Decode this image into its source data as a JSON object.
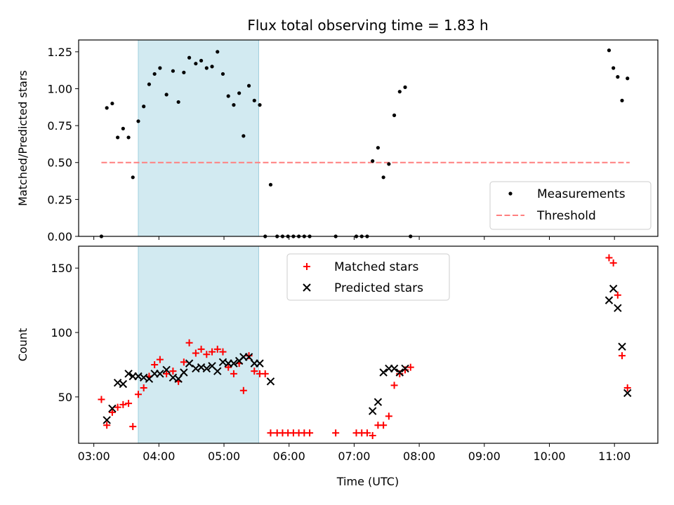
{
  "figure": {
    "title": "Flux total observing time = 1.83 h",
    "xlabel": "Time (UTC)"
  },
  "colors": {
    "measurement": "#000000",
    "threshold": "#ff7f7f",
    "matched": "#ff0000",
    "predicted": "#000000",
    "span_fill": "#add8e6"
  },
  "chart_data": [
    {
      "type": "scatter",
      "ylabel": "Matched/Predicted stars",
      "ylim": [
        0,
        1.33
      ],
      "yticks": [
        "0.00",
        "0.25",
        "0.50",
        "0.75",
        "1.00",
        "1.25"
      ],
      "xlim": [
        "02:46",
        "11:40"
      ],
      "xticks": [
        "03:00",
        "04:00",
        "05:00",
        "06:00",
        "07:00",
        "08:00",
        "09:00",
        "10:00",
        "11:00"
      ],
      "highlight_span": [
        "03:41",
        "05:32"
      ],
      "legend": {
        "position": "lower right",
        "entries": [
          "Measurements",
          "Threshold"
        ]
      },
      "threshold": {
        "name": "Threshold",
        "y": 0.5,
        "x": [
          "03:07",
          "11:14"
        ]
      },
      "series": [
        {
          "name": "Measurements",
          "marker": "dot",
          "points": [
            [
              "03:07",
              0.0
            ],
            [
              "03:12",
              0.87
            ],
            [
              "03:17",
              0.9
            ],
            [
              "03:22",
              0.67
            ],
            [
              "03:27",
              0.73
            ],
            [
              "03:32",
              0.67
            ],
            [
              "03:36",
              0.4
            ],
            [
              "03:41",
              0.78
            ],
            [
              "03:46",
              0.88
            ],
            [
              "03:51",
              1.03
            ],
            [
              "03:56",
              1.1
            ],
            [
              "04:01",
              1.14
            ],
            [
              "04:07",
              0.96
            ],
            [
              "04:13",
              1.12
            ],
            [
              "04:18",
              0.91
            ],
            [
              "04:23",
              1.11
            ],
            [
              "04:28",
              1.21
            ],
            [
              "04:34",
              1.17
            ],
            [
              "04:39",
              1.19
            ],
            [
              "04:44",
              1.14
            ],
            [
              "04:49",
              1.15
            ],
            [
              "04:54",
              1.25
            ],
            [
              "04:59",
              1.1
            ],
            [
              "05:04",
              0.95
            ],
            [
              "05:09",
              0.89
            ],
            [
              "05:14",
              0.97
            ],
            [
              "05:18",
              0.68
            ],
            [
              "05:23",
              1.02
            ],
            [
              "05:28",
              0.92
            ],
            [
              "05:33",
              0.89
            ],
            [
              "05:38",
              0.0
            ],
            [
              "05:43",
              0.35
            ],
            [
              "05:49",
              0.0
            ],
            [
              "05:54",
              0.0
            ],
            [
              "05:59",
              0.0
            ],
            [
              "06:04",
              0.0
            ],
            [
              "06:09",
              0.0
            ],
            [
              "06:14",
              0.0
            ],
            [
              "06:19",
              0.0
            ],
            [
              "06:43",
              0.0
            ],
            [
              "07:02",
              0.0
            ],
            [
              "07:07",
              0.0
            ],
            [
              "07:12",
              0.0
            ],
            [
              "07:17",
              0.51
            ],
            [
              "07:22",
              0.6
            ],
            [
              "07:27",
              0.4
            ],
            [
              "07:32",
              0.49
            ],
            [
              "07:37",
              0.82
            ],
            [
              "07:42",
              0.98
            ],
            [
              "07:47",
              1.01
            ],
            [
              "07:52",
              0.0
            ],
            [
              "10:55",
              1.26
            ],
            [
              "10:59",
              1.14
            ],
            [
              "11:03",
              1.08
            ],
            [
              "11:07",
              0.92
            ],
            [
              "11:12",
              1.07
            ]
          ]
        }
      ]
    },
    {
      "type": "scatter",
      "ylabel": "Count",
      "ylim": [
        14,
        167
      ],
      "yticks": [
        "50",
        "100",
        "150"
      ],
      "xlim": [
        "02:46",
        "11:40"
      ],
      "xticks": [
        "03:00",
        "04:00",
        "05:00",
        "06:00",
        "07:00",
        "08:00",
        "09:00",
        "10:00",
        "11:00"
      ],
      "highlight_span": [
        "03:41",
        "05:32"
      ],
      "legend": {
        "position": "upper center",
        "entries": [
          "Matched stars",
          "Predicted stars"
        ]
      },
      "series": [
        {
          "name": "Matched stars",
          "marker": "plus",
          "points": [
            [
              "03:07",
              48
            ],
            [
              "03:12",
              28
            ],
            [
              "03:17",
              38
            ],
            [
              "03:22",
              42
            ],
            [
              "03:27",
              44
            ],
            [
              "03:32",
              45
            ],
            [
              "03:36",
              27
            ],
            [
              "03:41",
              52
            ],
            [
              "03:46",
              57
            ],
            [
              "03:51",
              66
            ],
            [
              "03:56",
              75
            ],
            [
              "04:01",
              79
            ],
            [
              "04:07",
              68
            ],
            [
              "04:13",
              70
            ],
            [
              "04:18",
              62
            ],
            [
              "04:23",
              77
            ],
            [
              "04:28",
              92
            ],
            [
              "04:34",
              84
            ],
            [
              "04:39",
              87
            ],
            [
              "04:44",
              83
            ],
            [
              "04:49",
              85
            ],
            [
              "04:54",
              87
            ],
            [
              "04:59",
              85
            ],
            [
              "05:04",
              73
            ],
            [
              "05:09",
              68
            ],
            [
              "05:14",
              76
            ],
            [
              "05:18",
              55
            ],
            [
              "05:23",
              82
            ],
            [
              "05:28",
              70
            ],
            [
              "05:33",
              68
            ],
            [
              "05:38",
              68
            ],
            [
              "05:43",
              22
            ],
            [
              "05:49",
              22
            ],
            [
              "05:54",
              22
            ],
            [
              "05:59",
              22
            ],
            [
              "06:04",
              22
            ],
            [
              "06:09",
              22
            ],
            [
              "06:14",
              22
            ],
            [
              "06:19",
              22
            ],
            [
              "06:43",
              22
            ],
            [
              "07:02",
              22
            ],
            [
              "07:07",
              22
            ],
            [
              "07:12",
              22
            ],
            [
              "07:17",
              20
            ],
            [
              "07:22",
              28
            ],
            [
              "07:27",
              28
            ],
            [
              "07:32",
              35
            ],
            [
              "07:37",
              59
            ],
            [
              "07:42",
              68
            ],
            [
              "07:47",
              71
            ],
            [
              "07:52",
              73
            ],
            [
              "10:55",
              158
            ],
            [
              "10:59",
              154
            ],
            [
              "11:03",
              129
            ],
            [
              "11:07",
              82
            ],
            [
              "11:12",
              57
            ]
          ]
        },
        {
          "name": "Predicted stars",
          "marker": "x",
          "points": [
            [
              "03:12",
              32
            ],
            [
              "03:17",
              41
            ],
            [
              "03:22",
              61
            ],
            [
              "03:27",
              60
            ],
            [
              "03:32",
              68
            ],
            [
              "03:36",
              66
            ],
            [
              "03:41",
              66
            ],
            [
              "03:46",
              65
            ],
            [
              "03:51",
              64
            ],
            [
              "03:56",
              68
            ],
            [
              "04:01",
              68
            ],
            [
              "04:07",
              71
            ],
            [
              "04:13",
              65
            ],
            [
              "04:18",
              64
            ],
            [
              "04:23",
              69
            ],
            [
              "04:28",
              76
            ],
            [
              "04:34",
              72
            ],
            [
              "04:39",
              73
            ],
            [
              "04:44",
              72
            ],
            [
              "04:49",
              74
            ],
            [
              "04:54",
              70
            ],
            [
              "04:59",
              77
            ],
            [
              "05:04",
              76
            ],
            [
              "05:09",
              76
            ],
            [
              "05:14",
              78
            ],
            [
              "05:18",
              81
            ],
            [
              "05:23",
              81
            ],
            [
              "05:28",
              76
            ],
            [
              "05:33",
              76
            ],
            [
              "05:43",
              62
            ],
            [
              "07:17",
              39
            ],
            [
              "07:22",
              46
            ],
            [
              "07:27",
              69
            ],
            [
              "07:32",
              72
            ],
            [
              "07:37",
              72
            ],
            [
              "07:42",
              69
            ],
            [
              "07:47",
              72
            ],
            [
              "10:55",
              125
            ],
            [
              "10:59",
              134
            ],
            [
              "11:03",
              119
            ],
            [
              "11:07",
              89
            ],
            [
              "11:12",
              53
            ]
          ]
        }
      ]
    }
  ]
}
